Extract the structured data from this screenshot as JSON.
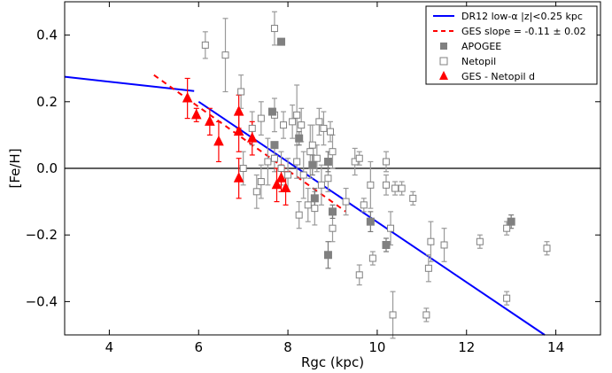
{
  "chart_data": {
    "type": "scatter",
    "xlabel": "Rgc (kpc)",
    "ylabel": "[Fe/H]",
    "xlim": [
      3,
      15
    ],
    "ylim": [
      -0.5,
      0.5
    ],
    "x_ticks": [
      4,
      6,
      8,
      10,
      12,
      14
    ],
    "y_ticks": [
      -0.4,
      -0.2,
      0.0,
      0.2,
      0.4
    ],
    "x_tick_labels": [
      "4",
      "6",
      "8",
      "10",
      "12",
      "14"
    ],
    "y_tick_labels": [
      "−0.4",
      "−0.2",
      "0.0",
      "0.2",
      "0.4"
    ],
    "zero_line": 0.0,
    "legend_position": "top-right",
    "colors": {
      "dr12": "#0000ff",
      "ges": "#ff0000",
      "apogee": "#808080",
      "netopil": "#808080"
    },
    "legend": [
      {
        "key": "dr12",
        "label": "DR12 low-α |z|<0.25 kpc",
        "marker": "line"
      },
      {
        "key": "ges_slope",
        "label": "GES slope = -0.11 ± 0.02",
        "marker": "dashed"
      },
      {
        "key": "apogee",
        "label": "APOGEE",
        "marker": "filled-square"
      },
      {
        "key": "netopil",
        "label": "Netopil",
        "marker": "open-square"
      },
      {
        "key": "ges",
        "label": "GES - Netopil d",
        "marker": "triangle"
      }
    ],
    "lines": {
      "dr12_inner": [
        [
          3.0,
          0.275
        ],
        [
          5.9,
          0.232
        ]
      ],
      "dr12_outer": [
        [
          6.0,
          0.2
        ],
        [
          13.75,
          -0.5
        ]
      ],
      "ges_slope": [
        [
          5.0,
          0.28
        ],
        [
          9.3,
          -0.13
        ]
      ]
    },
    "series": [
      {
        "name": "Netopil",
        "points": [
          [
            6.15,
            0.37,
            0.04
          ],
          [
            6.6,
            0.34,
            0.11
          ],
          [
            7.7,
            0.42,
            0.05
          ],
          [
            6.95,
            0.23,
            0.05
          ],
          [
            7.2,
            0.12,
            0.05
          ],
          [
            7.4,
            0.15,
            0.05
          ],
          [
            7.7,
            0.16,
            0.05
          ],
          [
            7.9,
            0.13,
            0.04
          ],
          [
            8.1,
            0.14,
            0.05
          ],
          [
            8.2,
            0.16,
            0.09
          ],
          [
            8.3,
            0.13,
            0.05
          ],
          [
            8.55,
            0.07,
            0.06
          ],
          [
            8.7,
            0.14,
            0.04
          ],
          [
            8.8,
            0.12,
            0.05
          ],
          [
            8.95,
            0.11,
            0.03
          ],
          [
            7.0,
            0.0,
            0.05
          ],
          [
            7.3,
            -0.07,
            0.05
          ],
          [
            7.4,
            -0.04,
            0.05
          ],
          [
            7.55,
            0.02,
            0.07
          ],
          [
            7.7,
            0.03,
            0.04
          ],
          [
            7.85,
            0.0,
            0.05
          ],
          [
            8.0,
            -0.02,
            0.05
          ],
          [
            8.2,
            0.02,
            0.05
          ],
          [
            8.35,
            -0.02,
            0.07
          ],
          [
            8.5,
            0.05,
            0.08
          ],
          [
            8.65,
            0.03,
            0.04
          ],
          [
            8.75,
            -0.05,
            0.06
          ],
          [
            8.9,
            -0.03,
            0.04
          ],
          [
            9.0,
            0.05,
            0.05
          ],
          [
            9.3,
            -0.1,
            0.04
          ],
          [
            9.5,
            0.02,
            0.04
          ],
          [
            9.6,
            0.03,
            0.02
          ],
          [
            9.85,
            -0.05,
            0.07
          ],
          [
            9.9,
            -0.27,
            0.02
          ],
          [
            10.2,
            -0.05,
            0.03
          ],
          [
            10.4,
            -0.06,
            0.02
          ],
          [
            10.55,
            -0.06,
            0.02
          ],
          [
            10.8,
            -0.09,
            0.02
          ],
          [
            9.6,
            -0.32,
            0.03
          ],
          [
            10.3,
            -0.18,
            0.05
          ],
          [
            10.35,
            -0.44,
            0.07
          ],
          [
            11.1,
            -0.44,
            0.02
          ],
          [
            11.15,
            -0.3,
            0.04
          ],
          [
            11.2,
            -0.22,
            0.06
          ],
          [
            11.5,
            -0.23,
            0.05
          ],
          [
            12.3,
            -0.22,
            0.02
          ],
          [
            12.9,
            -0.18,
            0.02
          ],
          [
            12.9,
            -0.39,
            0.02
          ],
          [
            13.8,
            -0.24,
            0.02
          ],
          [
            8.45,
            -0.11,
            0.05
          ],
          [
            8.6,
            -0.12,
            0.05
          ],
          [
            9.0,
            -0.18,
            0.04
          ],
          [
            8.25,
            -0.14,
            0.04
          ],
          [
            10.2,
            0.02,
            0.03
          ],
          [
            9.7,
            -0.11,
            0.02
          ]
        ]
      },
      {
        "name": "APOGEE",
        "points": [
          [
            7.85,
            0.38,
            0.0
          ],
          [
            7.65,
            0.17,
            0.0
          ],
          [
            7.7,
            0.07,
            0.0
          ],
          [
            8.25,
            0.09,
            0.02
          ],
          [
            8.55,
            0.01,
            0.03
          ],
          [
            8.9,
            0.02,
            0.03
          ],
          [
            8.6,
            -0.09,
            0.03
          ],
          [
            9.0,
            -0.13,
            0.02
          ],
          [
            8.9,
            -0.26,
            0.04
          ],
          [
            9.85,
            -0.16,
            0.03
          ],
          [
            10.2,
            -0.23,
            0.02
          ],
          [
            13.0,
            -0.16,
            0.02
          ]
        ]
      },
      {
        "name": "GES - Netopil d",
        "points": [
          [
            5.75,
            0.21,
            0.06
          ],
          [
            5.95,
            0.16,
            0.02
          ],
          [
            6.25,
            0.14,
            0.04
          ],
          [
            6.45,
            0.08,
            0.06
          ],
          [
            6.9,
            0.17,
            0.05
          ],
          [
            6.9,
            0.11,
            0.06
          ],
          [
            6.9,
            -0.03,
            0.06
          ],
          [
            7.2,
            0.09,
            0.05
          ],
          [
            7.75,
            -0.05,
            0.05
          ],
          [
            7.85,
            -0.03,
            0.04
          ],
          [
            7.95,
            -0.06,
            0.05
          ]
        ]
      }
    ]
  }
}
